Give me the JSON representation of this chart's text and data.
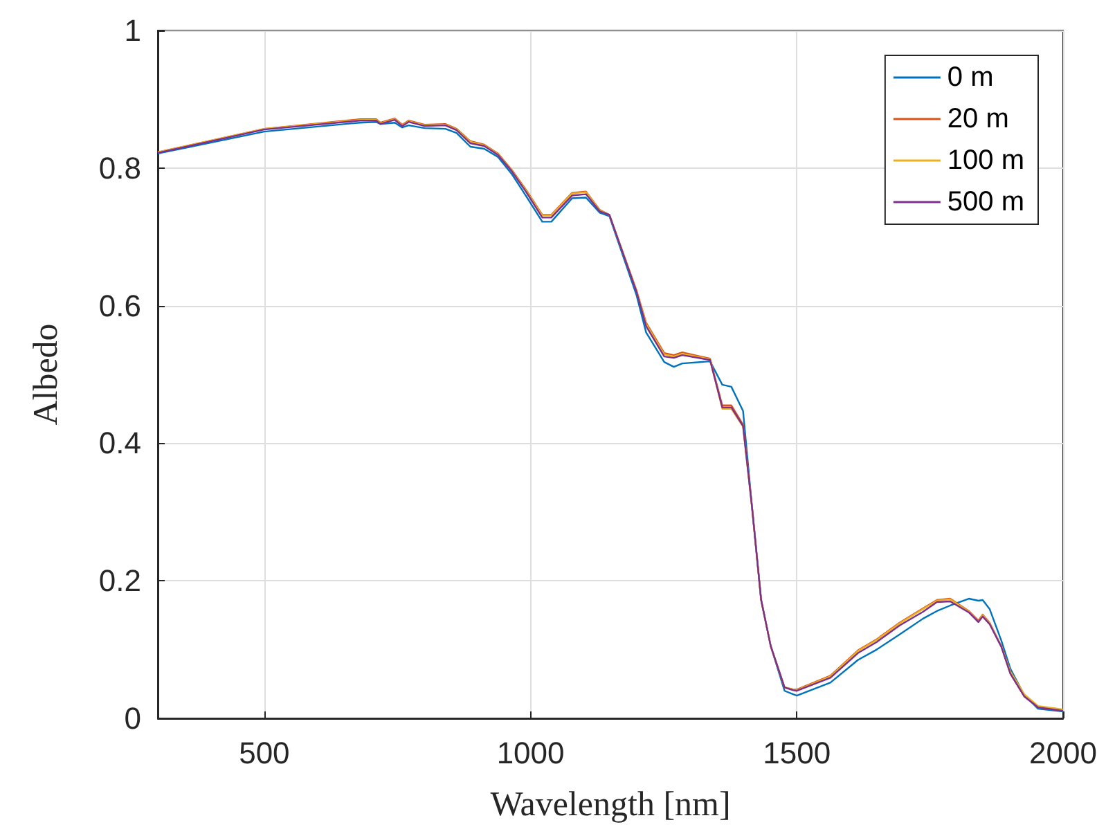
{
  "chart_data": {
    "type": "line",
    "xlabel": "Wavelength [nm]",
    "ylabel": "Albedo",
    "x": [
      300,
      500,
      680,
      710,
      718,
      745,
      759,
      771,
      801,
      840,
      861,
      887,
      913,
      939,
      965,
      991,
      1022,
      1039,
      1078,
      1104,
      1130,
      1148,
      1199,
      1217,
      1251,
      1269,
      1285,
      1337,
      1360,
      1377,
      1399,
      1416,
      1433,
      1451,
      1477,
      1493,
      1500,
      1563,
      1615,
      1650,
      1693,
      1737,
      1763,
      1788,
      1823,
      1841,
      1849,
      1862,
      1884,
      1901,
      1927,
      1953,
      2000
    ],
    "series": [
      {
        "name": "0 m",
        "color": "#0072bd",
        "values": [
          0.821,
          0.853,
          0.866,
          0.867,
          0.864,
          0.866,
          0.859,
          0.862,
          0.858,
          0.857,
          0.851,
          0.831,
          0.828,
          0.816,
          0.791,
          0.76,
          0.722,
          0.722,
          0.756,
          0.757,
          0.735,
          0.73,
          0.615,
          0.561,
          0.518,
          0.511,
          0.516,
          0.519,
          0.485,
          0.482,
          0.447,
          0.306,
          0.172,
          0.105,
          0.04,
          0.035,
          0.033,
          0.052,
          0.085,
          0.1,
          0.122,
          0.145,
          0.156,
          0.164,
          0.174,
          0.171,
          0.172,
          0.159,
          0.113,
          0.072,
          0.034,
          0.014,
          0.01
        ]
      },
      {
        "name": "20 m",
        "color": "#d95319",
        "values": [
          0.823,
          0.857,
          0.871,
          0.871,
          0.866,
          0.872,
          0.863,
          0.869,
          0.863,
          0.864,
          0.857,
          0.839,
          0.834,
          0.821,
          0.797,
          0.769,
          0.732,
          0.732,
          0.764,
          0.766,
          0.739,
          0.732,
          0.622,
          0.575,
          0.531,
          0.528,
          0.532,
          0.523,
          0.455,
          0.455,
          0.427,
          0.306,
          0.172,
          0.105,
          0.045,
          0.042,
          0.042,
          0.062,
          0.099,
          0.115,
          0.139,
          0.16,
          0.172,
          0.174,
          0.156,
          0.142,
          0.151,
          0.139,
          0.105,
          0.065,
          0.032,
          0.016,
          0.011
        ]
      },
      {
        "name": "100 m",
        "color": "#edb120",
        "values": [
          0.823,
          0.857,
          0.87,
          0.87,
          0.865,
          0.871,
          0.862,
          0.868,
          0.862,
          0.863,
          0.856,
          0.838,
          0.833,
          0.82,
          0.796,
          0.768,
          0.731,
          0.731,
          0.763,
          0.765,
          0.738,
          0.732,
          0.621,
          0.573,
          0.529,
          0.526,
          0.53,
          0.522,
          0.45,
          0.45,
          0.424,
          0.306,
          0.172,
          0.105,
          0.045,
          0.042,
          0.041,
          0.061,
          0.098,
          0.114,
          0.138,
          0.159,
          0.171,
          0.173,
          0.155,
          0.14,
          0.15,
          0.138,
          0.105,
          0.068,
          0.035,
          0.018,
          0.013
        ]
      },
      {
        "name": "500 m",
        "color": "#7e2f8e",
        "values": [
          0.822,
          0.856,
          0.869,
          0.869,
          0.864,
          0.87,
          0.861,
          0.867,
          0.861,
          0.862,
          0.855,
          0.836,
          0.832,
          0.819,
          0.795,
          0.766,
          0.728,
          0.728,
          0.76,
          0.762,
          0.737,
          0.732,
          0.62,
          0.57,
          0.526,
          0.524,
          0.528,
          0.521,
          0.452,
          0.452,
          0.425,
          0.306,
          0.172,
          0.105,
          0.045,
          0.041,
          0.04,
          0.059,
          0.095,
          0.111,
          0.135,
          0.155,
          0.169,
          0.17,
          0.154,
          0.14,
          0.148,
          0.137,
          0.104,
          0.065,
          0.032,
          0.016,
          0.011
        ]
      }
    ],
    "xlim": [
      300,
      2000
    ],
    "xticks": [
      500,
      1000,
      1500,
      2000
    ],
    "ylim": [
      0,
      1
    ],
    "yticks": [
      0,
      0.2,
      0.4,
      0.6,
      0.8,
      1
    ],
    "grid": true,
    "legend": "top right",
    "marker": "none",
    "line_style": "solid"
  }
}
